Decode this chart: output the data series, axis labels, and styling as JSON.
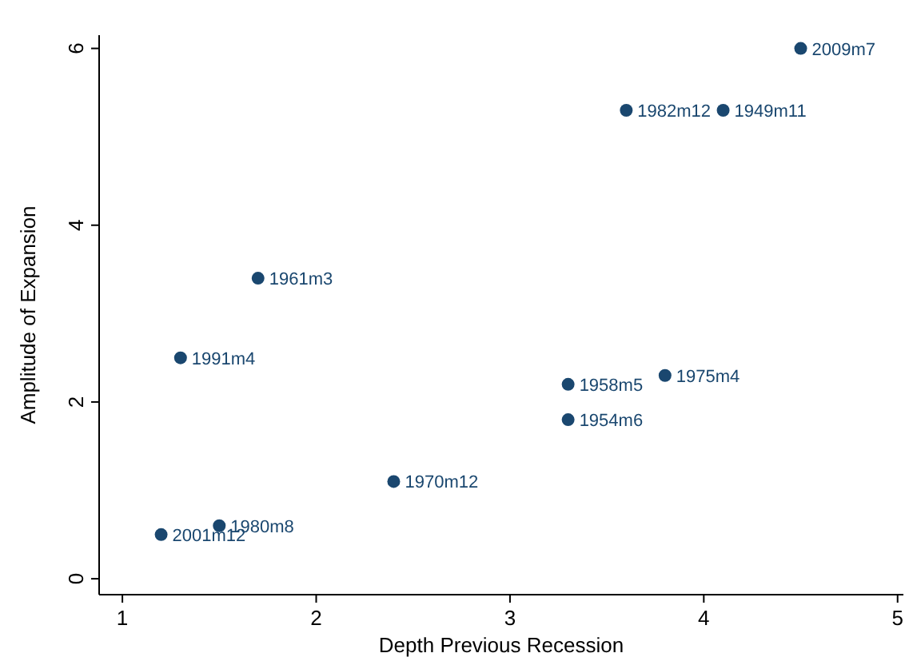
{
  "chart_data": {
    "type": "scatter",
    "xlabel": "Depth Previous Recession",
    "ylabel": "Amplitude of Expansion",
    "x": [
      4.5,
      3.6,
      4.1,
      1.7,
      1.3,
      3.3,
      3.8,
      3.3,
      2.4,
      1.5,
      1.2
    ],
    "series": [
      {
        "color": "#1a476f",
        "values": [
          6.0,
          5.3,
          5.3,
          3.4,
          2.5,
          2.2,
          2.3,
          1.8,
          1.1,
          0.6,
          0.5
        ]
      }
    ],
    "annotations": [
      {
        "text": "2009m7",
        "x": 4.5,
        "y": 6.0
      },
      {
        "text": "1982m12",
        "x": 3.6,
        "y": 5.3
      },
      {
        "text": "1949m11",
        "x": 4.1,
        "y": 5.3
      },
      {
        "text": "1961m3",
        "x": 1.7,
        "y": 3.4
      },
      {
        "text": "1991m4",
        "x": 1.3,
        "y": 2.5
      },
      {
        "text": "1958m5",
        "x": 3.3,
        "y": 2.2
      },
      {
        "text": "1975m4",
        "x": 3.8,
        "y": 2.3
      },
      {
        "text": "1954m6",
        "x": 3.3,
        "y": 1.8
      },
      {
        "text": "1970m12",
        "x": 2.4,
        "y": 1.1
      },
      {
        "text": "1980m8",
        "x": 1.5,
        "y": 0.6
      },
      {
        "text": "2001m12",
        "x": 1.2,
        "y": 0.5
      }
    ],
    "xlim": [
      0.88,
      5.03
    ],
    "ylim": [
      -0.18,
      6.15
    ],
    "xticks": [
      1,
      2,
      3,
      4,
      5
    ],
    "yticks": [
      0,
      2,
      4,
      6
    ],
    "marker": "circle"
  }
}
